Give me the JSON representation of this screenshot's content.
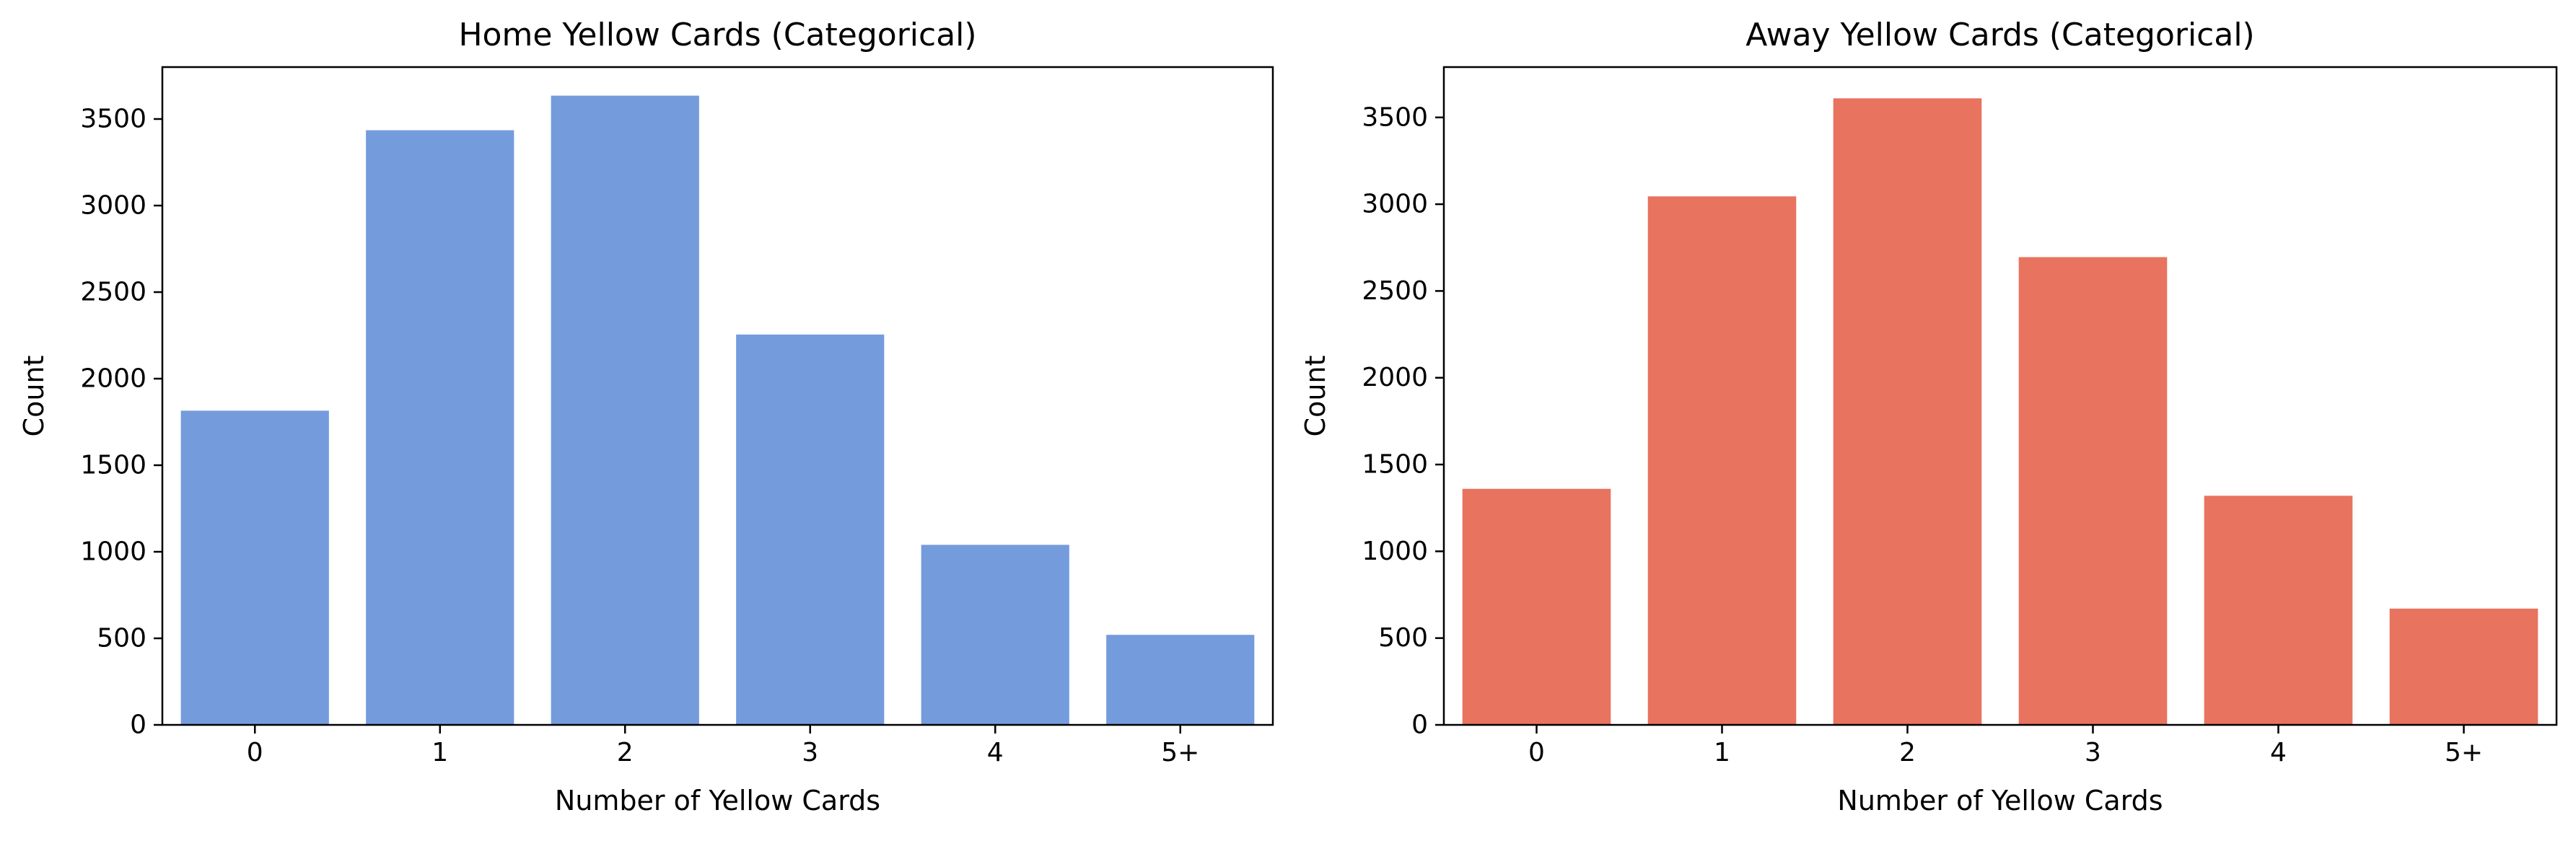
{
  "chart_data": [
    {
      "type": "bar",
      "title": "Home Yellow Cards (Categorical)",
      "xlabel": "Number of Yellow Cards",
      "ylabel": "Count",
      "categories": [
        "0",
        "1",
        "2",
        "3",
        "4",
        "5+"
      ],
      "values": [
        1815,
        3435,
        3635,
        2255,
        1040,
        520
      ],
      "ylim": [
        0,
        3800
      ],
      "yticks": [
        0,
        500,
        1000,
        1500,
        2000,
        2500,
        3000,
        3500
      ],
      "color": "#749BDC",
      "grid": false
    },
    {
      "type": "bar",
      "title": "Away Yellow Cards (Categorical)",
      "xlabel": "Number of Yellow Cards",
      "ylabel": "Count",
      "categories": [
        "0",
        "1",
        "2",
        "3",
        "4",
        "5+"
      ],
      "values": [
        1360,
        3045,
        3610,
        2695,
        1320,
        670
      ],
      "ylim": [
        0,
        3790
      ],
      "yticks": [
        0,
        500,
        1000,
        1500,
        2000,
        2500,
        3000,
        3500
      ],
      "color": "#E8735E",
      "grid": false
    }
  ]
}
